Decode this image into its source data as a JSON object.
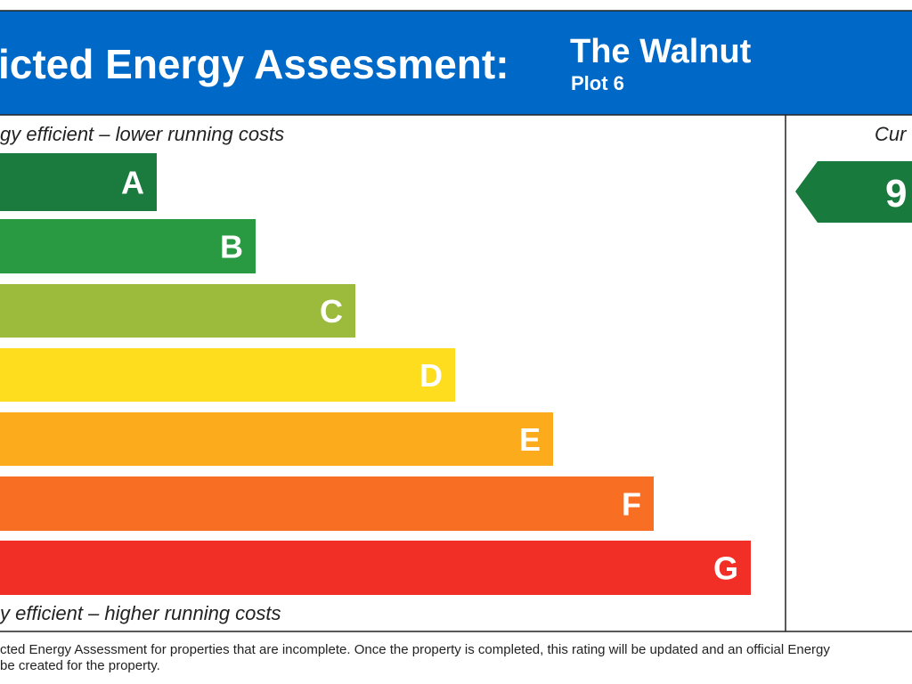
{
  "header": {
    "title": "icted Energy Assessment:",
    "name": "The Walnut",
    "plot": "Plot 6"
  },
  "scale": {
    "top_label": "gy efficient – lower running costs",
    "bottom_label": "y efficient – higher running costs",
    "bands": [
      "A",
      "B",
      "C",
      "D",
      "E",
      "F",
      "G"
    ]
  },
  "current": {
    "heading": "Cur",
    "rating": "9"
  },
  "footer": {
    "lines": [
      "cted Energy Assessment for properties that are incomplete. Once the property is completed, this rating will be updated and an official Energy",
      "be created for the property."
    ]
  }
}
